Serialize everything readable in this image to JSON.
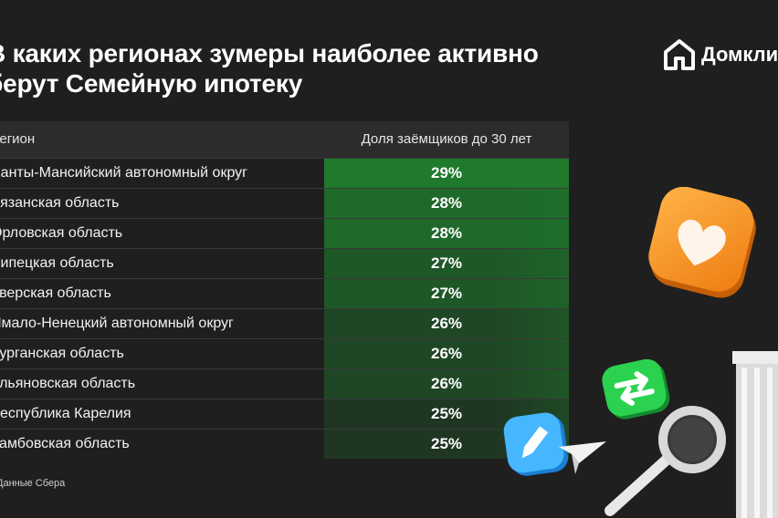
{
  "title": "В каких регионах зумеры наиболее активно\nберут Семейную ипотеку",
  "logo_text": "Домкли",
  "table": {
    "header_region": "Регион",
    "header_share": "Доля заёмщиков до 30 лет"
  },
  "source": "Данные Сбера",
  "colors": {
    "background": "#1f1f1f",
    "green_high": "#1f7a2c",
    "green_low": "#1f2a21"
  },
  "chart_data": {
    "type": "table",
    "columns": [
      "Регион",
      "Доля заёмщиков до 30 лет"
    ],
    "rows": [
      {
        "region": "Ханты-Мансийский автономный округ",
        "share": 29,
        "label": "29%"
      },
      {
        "region": "Рязанская область",
        "share": 28,
        "label": "28%"
      },
      {
        "region": "Орловская область",
        "share": 28,
        "label": "28%"
      },
      {
        "region": "Липецкая область",
        "share": 27,
        "label": "27%"
      },
      {
        "region": "Тверская область",
        "share": 27,
        "label": "27%"
      },
      {
        "region": "Ямало-Ненецкий автономный округ",
        "share": 26,
        "label": "26%"
      },
      {
        "region": "Курганская область",
        "share": 26,
        "label": "26%"
      },
      {
        "region": "Ульяновская область",
        "share": 26,
        "label": "26%"
      },
      {
        "region": "Республика Карелия",
        "share": 25,
        "label": "25%"
      },
      {
        "region": "Тамбовская область",
        "share": 25,
        "label": "25%"
      }
    ]
  }
}
